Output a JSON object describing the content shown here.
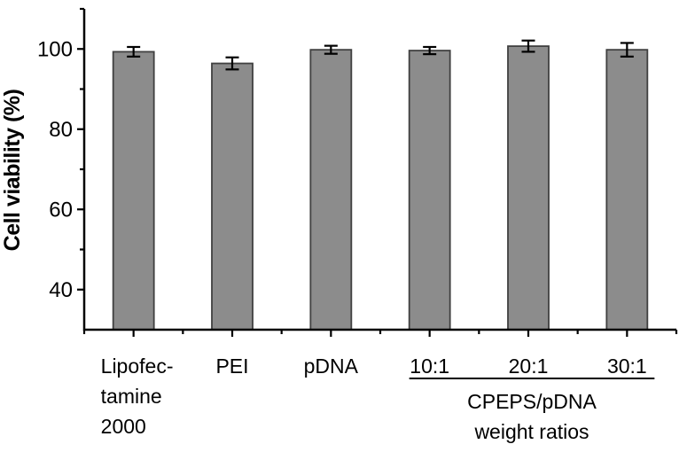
{
  "chart_data": {
    "type": "bar",
    "title": "",
    "ylabel": "Cell viability (%)",
    "xlabel": "",
    "categories": [
      {
        "name": "Lipofectamine 2000",
        "label_lines": [
          "Lipofec-",
          "tamine",
          "2000"
        ]
      },
      {
        "name": "PEI",
        "label_lines": [
          "PEI"
        ]
      },
      {
        "name": "pDNA",
        "label_lines": [
          "pDNA"
        ]
      },
      {
        "name": "10:1",
        "label_lines": [
          "10:1"
        ]
      },
      {
        "name": "20:1",
        "label_lines": [
          "20:1"
        ]
      },
      {
        "name": "30:1",
        "label_lines": [
          "30:1"
        ]
      }
    ],
    "series": [
      {
        "name": "Cell viability",
        "values": [
          99.3,
          96.4,
          99.8,
          99.6,
          100.7,
          99.8
        ],
        "errors": [
          1.2,
          1.5,
          1.0,
          0.9,
          1.4,
          1.7
        ]
      }
    ],
    "ylim": [
      30,
      110
    ],
    "yticks_major": [
      40,
      60,
      80,
      100
    ],
    "yticks_minor": [
      50,
      70,
      90,
      110
    ],
    "grid": false,
    "legend": null,
    "group_annotation": {
      "label_lines": [
        "CPEPS/pDNA",
        "weight ratios"
      ],
      "from_category": "10:1",
      "to_category": "30:1"
    },
    "colors": {
      "bar_fill": "#8c8c8c",
      "bar_edge": "#404040",
      "error_bar": "#000000",
      "axis": "#000000",
      "text": "#000000",
      "background": "#ffffff"
    }
  }
}
